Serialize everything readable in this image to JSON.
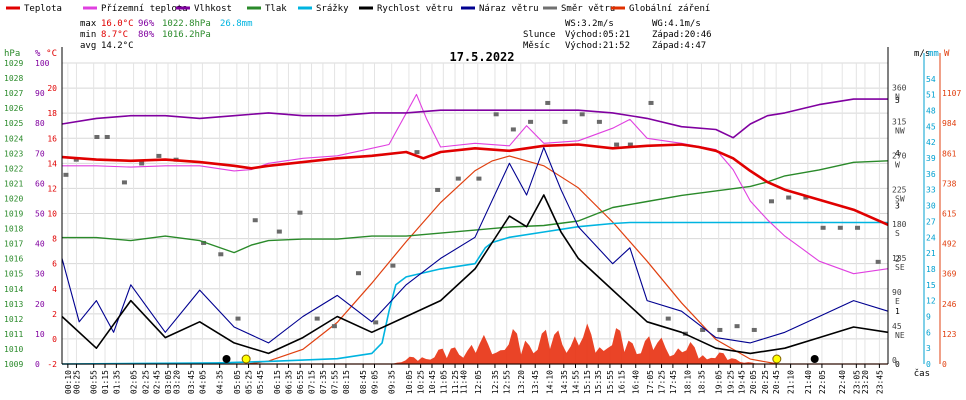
{
  "chart_data": {
    "type": "line",
    "title": "17.5.2022",
    "xlabel": "čas",
    "legend": [
      {
        "name": "Teplota",
        "color": "#e00000"
      },
      {
        "name": "Přízemní teplota",
        "color": "#e040e0"
      },
      {
        "name": "Vlhkost",
        "color": "#8000a0"
      },
      {
        "name": "Tlak",
        "color": "#2a8a2a"
      },
      {
        "name": "Srážky",
        "color": "#00b4e0"
      },
      {
        "name": "Rychlost větru",
        "color": "#000000"
      },
      {
        "name": "Náraz větru",
        "color": "#000090"
      },
      {
        "name": "Směr větru",
        "color": "#707070"
      },
      {
        "name": "Globální záření",
        "color": "#e03000"
      }
    ],
    "stats": {
      "max": {
        "label": "max",
        "temp": "16.0°C",
        "hum": "96%",
        "press": "1022.8hPa",
        "rain": "26.8mm"
      },
      "min": {
        "label": "min",
        "temp": "8.7°C",
        "hum": "80%",
        "press": "1016.2hPa"
      },
      "avg": {
        "label": "avg",
        "temp": "14.2°C"
      }
    },
    "info": {
      "ws": "WS:3.2m/s",
      "wg": "WG:4.1m/s",
      "slunce": "Slunce",
      "slunce_vychod": "Východ:05:21",
      "slunce_zapad": "Západ:20:46",
      "mesic": "Měsíc",
      "mesic_vychod": "Východ:21:52",
      "mesic_zapad": "Západ:4:47"
    },
    "axes_left": {
      "hpa": {
        "unit": "hPa",
        "ticks": [
          "1029",
          "1028",
          "1027",
          "1026",
          "1025",
          "1024",
          "1023",
          "1022",
          "1021",
          "1020",
          "1019",
          "1018",
          "1017",
          "1016",
          "1015",
          "1014",
          "1013",
          "1012",
          "1011",
          "1010",
          "1009"
        ]
      },
      "pct": {
        "unit": "%",
        "ticks": [
          "100",
          "90",
          "80",
          "70",
          "60",
          "50",
          "40",
          "30",
          "20",
          "10",
          "0"
        ]
      },
      "temp": {
        "unit": "°C",
        "ticks": [
          "20",
          "18",
          "16",
          "14",
          "12",
          "10",
          "8",
          "6",
          "4",
          "2",
          "0",
          "-2"
        ],
        "ylim": [
          -2,
          22
        ]
      }
    },
    "axes_right": {
      "ms": {
        "unit": "m/s",
        "ticks": [
          "5",
          "4",
          "3",
          "2",
          "1",
          "0"
        ]
      },
      "dir": {
        "ticks": [
          "360",
          "N",
          "315",
          "NW",
          "270",
          "W",
          "225",
          "SW",
          "180",
          "S",
          "135",
          "SE",
          "90",
          "E",
          "45",
          "NE",
          "0"
        ]
      },
      "mm": {
        "unit": "mm",
        "ticks": [
          "54",
          "51",
          "48",
          "45",
          "42",
          "39",
          "36",
          "33",
          "30",
          "27",
          "24",
          "21",
          "18",
          "15",
          "12",
          "9",
          "6",
          "3",
          "0"
        ],
        "ylim": [
          0,
          57
        ]
      },
      "w": {
        "unit": "W",
        "ticks": [
          "1107",
          "984",
          "861",
          "738",
          "615",
          "492",
          "369",
          "246",
          "123",
          "0"
        ]
      }
    },
    "x_ticks": [
      "00:10",
      "00:25",
      "00:55",
      "01:15",
      "01:35",
      "02:05",
      "02:25",
      "02:45",
      "03:05",
      "03:20",
      "03:45",
      "04:05",
      "04:35",
      "05:05",
      "05:25",
      "05:45",
      "06:15",
      "06:35",
      "06:55",
      "07:15",
      "07:35",
      "07:55",
      "08:15",
      "08:45",
      "09:05",
      "09:35",
      "10:05",
      "10:25",
      "10:45",
      "11:05",
      "11:25",
      "11:40",
      "12:05",
      "12:35",
      "12:55",
      "13:20",
      "13:45",
      "14:10",
      "14:35",
      "14:55",
      "15:15",
      "15:35",
      "15:55",
      "16:15",
      "16:40",
      "17:05",
      "17:25",
      "17:45",
      "18:10",
      "18:35",
      "19:05",
      "19:25",
      "19:45",
      "20:05",
      "20:25",
      "20:45",
      "21:10",
      "21:40",
      "22:05",
      "22:40",
      "23:05",
      "23:20",
      "23:45"
    ],
    "x_hours": [
      0.17,
      0.42,
      0.92,
      1.25,
      1.58,
      2.08,
      2.42,
      2.75,
      3.08,
      3.33,
      3.75,
      4.08,
      4.58,
      5.08,
      5.42,
      5.75,
      6.25,
      6.58,
      6.92,
      7.25,
      7.58,
      7.92,
      8.25,
      8.75,
      9.08,
      9.58,
      10.08,
      10.42,
      10.75,
      11.08,
      11.42,
      11.67,
      12.08,
      12.58,
      12.92,
      13.33,
      13.75,
      14.17,
      14.58,
      14.92,
      15.25,
      15.58,
      15.92,
      16.25,
      16.67,
      17.08,
      17.42,
      17.75,
      18.17,
      18.58,
      19.08,
      19.42,
      19.75,
      20.08,
      20.42,
      20.75,
      21.17,
      21.67,
      22.08,
      22.67,
      23.08,
      23.33,
      23.75
    ],
    "series": [
      {
        "name": "Teplota",
        "unit": "°C",
        "x": [
          0,
          1,
          2,
          3,
          4,
          5,
          5.5,
          6,
          7,
          8,
          9,
          10,
          10.5,
          11,
          12,
          13,
          14,
          15,
          16,
          17,
          18,
          18.5,
          19,
          19.5,
          20,
          20.5,
          21,
          22,
          23,
          24
        ],
        "values": [
          14.5,
          14.3,
          14.2,
          14.3,
          14.1,
          13.8,
          13.6,
          13.8,
          14.1,
          14.4,
          14.6,
          14.9,
          14.4,
          14.9,
          15.2,
          15.0,
          15.4,
          15.5,
          15.2,
          15.4,
          15.5,
          15.3,
          15.0,
          14.4,
          13.4,
          12.5,
          11.9,
          11.1,
          10.3,
          9.1
        ]
      },
      {
        "name": "Přízemní teplota",
        "unit": "°C",
        "x": [
          0,
          1,
          2,
          3,
          4,
          5,
          5.5,
          6,
          7,
          8,
          9,
          9.5,
          10,
          10.3,
          10.6,
          11,
          12,
          13,
          13.5,
          14,
          15,
          16,
          16.5,
          17,
          18,
          19,
          19.5,
          20,
          20.5,
          21,
          21.5,
          22,
          23,
          24
        ],
        "values": [
          13.8,
          13.8,
          13.7,
          13.8,
          13.8,
          13.4,
          13.5,
          14.0,
          14.4,
          14.6,
          15.2,
          15.5,
          18.0,
          19.5,
          17.5,
          15.3,
          15.6,
          15.4,
          17.0,
          15.6,
          15.8,
          16.8,
          17.5,
          16.0,
          15.6,
          15.1,
          13.5,
          11.0,
          9.5,
          8.2,
          7.2,
          6.2,
          5.2,
          5.6
        ]
      },
      {
        "name": "Vlhkost",
        "unit": "%",
        "x": [
          0,
          1,
          2,
          3,
          4,
          5,
          6,
          7,
          8,
          9,
          10,
          11,
          12,
          13,
          14,
          15,
          16,
          17,
          18,
          19,
          19.5,
          20,
          20.5,
          21,
          22,
          23,
          24
        ],
        "values": [
          87,
          89,
          90,
          90,
          89,
          90,
          91,
          90,
          90,
          91,
          91,
          92,
          92,
          92,
          92,
          92,
          91,
          89,
          86,
          85,
          82,
          87,
          90,
          91,
          94,
          96,
          96
        ]
      },
      {
        "name": "Tlak",
        "unit": "hPa",
        "x": [
          0,
          1,
          2,
          3,
          4,
          5,
          5.5,
          6,
          7,
          8,
          9,
          10,
          11,
          12,
          13,
          14,
          15,
          16,
          17,
          18,
          19,
          20,
          20.5,
          21,
          22,
          23,
          24
        ],
        "values": [
          1017.4,
          1017.4,
          1017.2,
          1017.5,
          1017.2,
          1016.4,
          1016.9,
          1017.2,
          1017.3,
          1017.3,
          1017.5,
          1017.5,
          1017.7,
          1017.9,
          1018.1,
          1018.2,
          1018.5,
          1019.4,
          1019.8,
          1020.2,
          1020.5,
          1020.8,
          1021.1,
          1021.5,
          1021.9,
          1022.4,
          1022.5
        ]
      },
      {
        "name": "Srážky",
        "unit": "mm",
        "x": [
          0,
          4.5,
          6,
          8,
          9,
          9.3,
          9.5,
          9.7,
          10,
          11,
          12,
          12.3,
          12.5,
          13,
          14,
          15,
          16,
          16.5,
          24
        ],
        "values": [
          0,
          0.2,
          0.5,
          1,
          2,
          4,
          10,
          15,
          16.5,
          18,
          19,
          22,
          23,
          24,
          25,
          26,
          26.6,
          26.8,
          26.8
        ]
      },
      {
        "name": "Rychlost větru",
        "unit": "m/s",
        "x": [
          0,
          1,
          2,
          3,
          4,
          5,
          6,
          7,
          8,
          9,
          10,
          11,
          12,
          12.5,
          13,
          13.5,
          14,
          14.5,
          15,
          16,
          17,
          18,
          19,
          20,
          21,
          22,
          23,
          24
        ],
        "values": [
          0.9,
          0.3,
          1.2,
          0.5,
          0.8,
          0.4,
          0.2,
          0.5,
          0.9,
          0.6,
          0.9,
          1.2,
          1.8,
          2.3,
          2.8,
          2.6,
          3.2,
          2.5,
          2.0,
          1.4,
          0.8,
          0.6,
          0.3,
          0.2,
          0.3,
          0.5,
          0.7,
          0.6
        ]
      },
      {
        "name": "Náraz větru",
        "unit": "m/s",
        "x": [
          0,
          0.5,
          1,
          1.5,
          2,
          3,
          4,
          5,
          6,
          7,
          8,
          9,
          10,
          11,
          12,
          12.5,
          13,
          13.5,
          14,
          14.5,
          15,
          16,
          16.5,
          17,
          18,
          19,
          20,
          21,
          22,
          23,
          24
        ],
        "values": [
          2.0,
          0.8,
          1.2,
          0.6,
          1.5,
          0.6,
          1.4,
          0.7,
          0.4,
          0.9,
          1.3,
          0.8,
          1.5,
          2.0,
          2.4,
          3.1,
          3.8,
          3.2,
          4.1,
          3.3,
          2.6,
          1.9,
          2.2,
          1.2,
          1.0,
          0.5,
          0.4,
          0.6,
          0.9,
          1.2,
          1.0
        ]
      },
      {
        "name": "Směr větru",
        "unit": "°",
        "x": [
          0.1,
          0.4,
          1.0,
          1.3,
          1.8,
          2.3,
          2.8,
          3.3,
          4.1,
          4.6,
          5.1,
          5.6,
          6.3,
          6.9,
          7.4,
          7.9,
          8.6,
          9.1,
          9.6,
          10.3,
          10.9,
          11.5,
          12.1,
          12.6,
          13.1,
          13.6,
          14.1,
          14.6,
          15.1,
          15.6,
          16.1,
          16.5,
          17.1,
          17.6,
          18.1,
          18.6,
          19.1,
          19.6,
          20.1,
          20.6,
          21.1,
          21.6,
          22.1,
          22.6,
          23.1,
          23.7
        ],
        "values": [
          250,
          270,
          300,
          300,
          240,
          265,
          275,
          270,
          160,
          145,
          60,
          190,
          175,
          200,
          60,
          50,
          120,
          55,
          130,
          280,
          230,
          245,
          245,
          330,
          310,
          320,
          345,
          320,
          330,
          320,
          290,
          290,
          345,
          60,
          40,
          45,
          45,
          50,
          45,
          215,
          220,
          220,
          180,
          180,
          180,
          135
        ]
      },
      {
        "name": "Globální záření",
        "unit": "W/m²",
        "x": [
          0,
          5.4,
          6,
          7,
          8,
          9,
          10,
          11,
          12,
          12.5,
          13,
          14,
          15,
          16,
          17,
          18,
          19,
          20,
          20.8,
          24
        ],
        "values": [
          0,
          0,
          12,
          60,
          170,
          330,
          500,
          660,
          790,
          830,
          850,
          810,
          720,
          580,
          420,
          250,
          100,
          20,
          0,
          0
        ]
      }
    ]
  }
}
